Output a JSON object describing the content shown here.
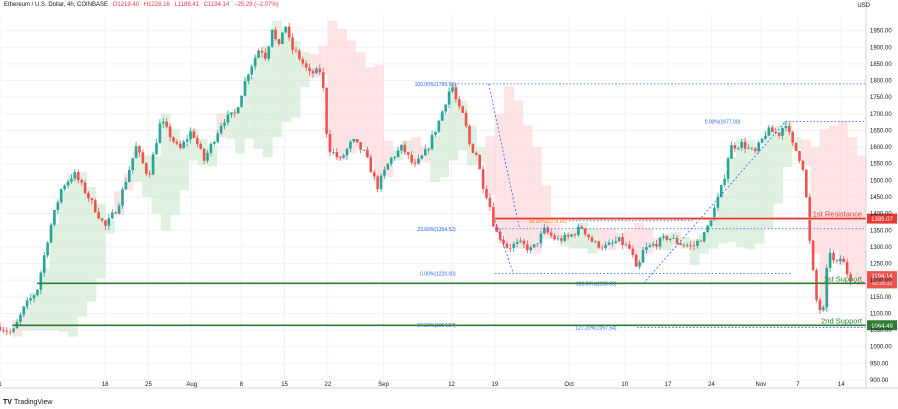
{
  "header": {
    "title": "Ethereum / U.S. Dollar, 4h, COINBASE",
    "open": "O1219.40",
    "high": "H1228.16",
    "low": "L1189.41",
    "close": "C1194.14",
    "change": "−25.29 (−2.07%)"
  },
  "currency": "USD",
  "brand": "TradingView",
  "chart_data": {
    "type": "candlestick",
    "symbol": "Ethereum / U.S. Dollar",
    "interval": "4h",
    "exchange": "COINBASE",
    "ylim": [
      900,
      2000
    ],
    "y_ticks": [
      900,
      950,
      1000,
      1050,
      1100,
      1150,
      1200,
      1250,
      1300,
      1350,
      1400,
      1450,
      1500,
      1550,
      1600,
      1650,
      1700,
      1750,
      1800,
      1850,
      1900,
      1950
    ],
    "y_tick_labels": [
      "900.00",
      "950.00",
      "1000.00",
      "1050.00",
      "1100.00",
      "1150.00",
      "1200.00",
      "1250.00",
      "1300.00",
      "1350.00",
      "1400.00",
      "1450.00",
      "1500.00",
      "1550.00",
      "1600.00",
      "1650.00",
      "1700.00",
      "1750.00",
      "1800.00",
      "1850.00",
      "1900.00",
      "1950.00"
    ],
    "x_ticks": [
      "1",
      "18",
      "25",
      "Aug",
      "8",
      "15",
      "22",
      "Sep",
      "12",
      "19",
      "Oct",
      "10",
      "17",
      "24",
      "Nov",
      "7",
      "14"
    ],
    "x_tick_days": [
      0,
      17,
      24,
      31,
      39,
      46,
      53,
      62,
      73,
      80,
      92,
      101,
      108,
      115,
      123,
      129,
      136
    ],
    "price_path": [
      [
        0,
        1060
      ],
      [
        2,
        1040
      ],
      [
        4,
        1120
      ],
      [
        6,
        1170
      ],
      [
        8,
        1350
      ],
      [
        10,
        1480
      ],
      [
        12,
        1520
      ],
      [
        14,
        1460
      ],
      [
        17,
        1360
      ],
      [
        19,
        1420
      ],
      [
        22,
        1600
      ],
      [
        24,
        1510
      ],
      [
        26,
        1680
      ],
      [
        29,
        1590
      ],
      [
        31,
        1650
      ],
      [
        33,
        1560
      ],
      [
        36,
        1680
      ],
      [
        38,
        1700
      ],
      [
        40,
        1820
      ],
      [
        42,
        1900
      ],
      [
        43,
        1870
      ],
      [
        44,
        1960
      ],
      [
        45,
        1890
      ],
      [
        46,
        1980
      ],
      [
        47,
        1900
      ],
      [
        48,
        1880
      ],
      [
        50,
        1820
      ],
      [
        52,
        1830
      ],
      [
        53,
        1600
      ],
      [
        55,
        1560
      ],
      [
        57,
        1620
      ],
      [
        59,
        1580
      ],
      [
        61,
        1480
      ],
      [
        63,
        1560
      ],
      [
        65,
        1600
      ],
      [
        67,
        1540
      ],
      [
        69,
        1590
      ],
      [
        71,
        1680
      ],
      [
        73,
        1790
      ],
      [
        74,
        1720
      ],
      [
        75,
        1690
      ],
      [
        76,
        1600
      ],
      [
        77,
        1580
      ],
      [
        78,
        1490
      ],
      [
        79,
        1440
      ],
      [
        80,
        1350
      ],
      [
        82,
        1300
      ],
      [
        84,
        1310
      ],
      [
        86,
        1290
      ],
      [
        88,
        1350
      ],
      [
        90,
        1320
      ],
      [
        92,
        1330
      ],
      [
        94,
        1360
      ],
      [
        96,
        1310
      ],
      [
        98,
        1300
      ],
      [
        100,
        1320
      ],
      [
        102,
        1290
      ],
      [
        103,
        1220
      ],
      [
        104,
        1290
      ],
      [
        106,
        1310
      ],
      [
        108,
        1330
      ],
      [
        110,
        1310
      ],
      [
        112,
        1300
      ],
      [
        114,
        1340
      ],
      [
        116,
        1440
      ],
      [
        117,
        1500
      ],
      [
        118,
        1600
      ],
      [
        120,
        1610
      ],
      [
        122,
        1580
      ],
      [
        124,
        1650
      ],
      [
        126,
        1640
      ],
      [
        127,
        1677
      ],
      [
        128,
        1610
      ],
      [
        129,
        1580
      ],
      [
        130,
        1530
      ],
      [
        131,
        1290
      ],
      [
        132,
        1140
      ],
      [
        133,
        1090
      ],
      [
        134,
        1300
      ],
      [
        135,
        1240
      ],
      [
        136,
        1270
      ],
      [
        137,
        1220
      ],
      [
        138,
        1194
      ]
    ],
    "fib_levels": [
      {
        "label": "100.00%(1789.98)",
        "price": 1789.98
      },
      {
        "label": "0.00%(1677.00)",
        "price": 1677.0
      },
      {
        "label": "23.60%(1354.52)",
        "price": 1354.52
      },
      {
        "label": "38.20%(1378.60)",
        "price": 1378.6
      },
      {
        "label": "0.00%(1220.00)",
        "price": 1220.0
      },
      {
        "label": "100.00%(1190.00)",
        "price": 1190.0
      },
      {
        "label": "27.20%(1064.97)",
        "price": 1064.97
      },
      {
        "label": "127.20%(1057.54)",
        "price": 1057.54
      }
    ],
    "levels": [
      {
        "name": "1st Resistance",
        "price": 1385.07,
        "label": "1385.07",
        "color": "#e53935"
      },
      {
        "name": "1st Support",
        "price": 1190.61,
        "label": "1190.61",
        "color": "#2e7d32"
      },
      {
        "name": "2nd Support",
        "price": 1064.49,
        "label": "1064.49",
        "color": "#2e7d32"
      }
    ],
    "last_price": {
      "value": 1194.14,
      "label": "1194.14",
      "countdown": "02:29:33"
    },
    "colors": {
      "up": "#26a69a",
      "down": "#ef5350",
      "cloud_up": "#c8e6c9",
      "cloud_down": "#ffcdd2",
      "fib": "#2962ff",
      "grid": "#f0f3fa"
    }
  }
}
